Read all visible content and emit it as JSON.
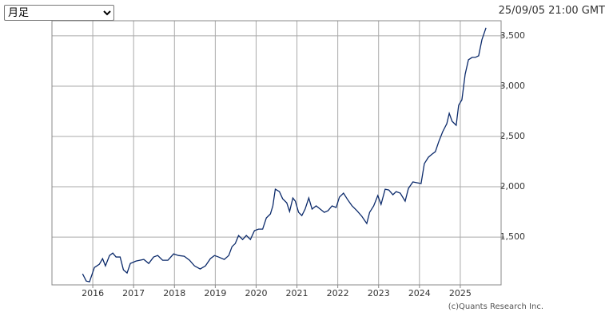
{
  "period_select": {
    "selected": "月足"
  },
  "timestamp": "25/09/05 21:00 GMT",
  "copyright": "(c)Quants Research Inc.",
  "chart_data": {
    "type": "line",
    "grid": true,
    "color": "#0b2a6b",
    "xlim": [
      2015,
      2026
    ],
    "xticks": [
      2016,
      2017,
      2018,
      2019,
      2020,
      2021,
      2022,
      2023,
      2024,
      2025
    ],
    "ylim": [
      1025,
      3650
    ],
    "yticks": [
      {
        "value": 1500,
        "label": "1,500"
      },
      {
        "value": 2000,
        "label": "2,000"
      },
      {
        "value": 2500,
        "label": "2,500"
      },
      {
        "value": 3000,
        "label": "3,000"
      },
      {
        "value": 3500,
        "label": "3,500"
      }
    ],
    "x": [
      2015.75,
      2015.84,
      2015.92,
      2016.04,
      2016.16,
      2016.24,
      2016.31,
      2016.41,
      2016.49,
      2016.57,
      2016.67,
      2016.75,
      2016.84,
      2016.92,
      2017.06,
      2017.25,
      2017.37,
      2017.49,
      2017.59,
      2017.71,
      2017.84,
      2017.98,
      2018.1,
      2018.24,
      2018.37,
      2018.49,
      2018.63,
      2018.76,
      2018.88,
      2018.98,
      2019.08,
      2019.22,
      2019.33,
      2019.41,
      2019.49,
      2019.57,
      2019.67,
      2019.76,
      2019.86,
      2019.96,
      2020.06,
      2020.16,
      2020.25,
      2020.35,
      2020.41,
      2020.47,
      2020.57,
      2020.65,
      2020.75,
      2020.82,
      2020.9,
      2020.96,
      2021.04,
      2021.12,
      2021.2,
      2021.29,
      2021.37,
      2021.47,
      2021.57,
      2021.67,
      2021.76,
      2021.86,
      2021.96,
      2022.04,
      2022.14,
      2022.24,
      2022.35,
      2022.47,
      2022.59,
      2022.71,
      2022.78,
      2022.88,
      2022.98,
      2023.06,
      2023.16,
      2023.25,
      2023.35,
      2023.43,
      2023.53,
      2023.65,
      2023.73,
      2023.84,
      2023.94,
      2024.04,
      2024.12,
      2024.22,
      2024.31,
      2024.39,
      2024.47,
      2024.57,
      2024.67,
      2024.73,
      2024.8,
      2024.9,
      2024.96,
      2025.04,
      2025.12,
      2025.2,
      2025.29,
      2025.37,
      2025.45,
      2025.53,
      2025.63
    ],
    "values": [
      1135,
      1063,
      1056,
      1198,
      1230,
      1286,
      1214,
      1317,
      1341,
      1302,
      1302,
      1175,
      1143,
      1238,
      1262,
      1278,
      1238,
      1302,
      1317,
      1270,
      1270,
      1333,
      1317,
      1310,
      1270,
      1214,
      1183,
      1214,
      1286,
      1317,
      1302,
      1278,
      1317,
      1405,
      1436,
      1516,
      1476,
      1516,
      1476,
      1564,
      1579,
      1579,
      1690,
      1730,
      1810,
      1976,
      1952,
      1881,
      1841,
      1754,
      1889,
      1857,
      1746,
      1714,
      1778,
      1889,
      1778,
      1810,
      1778,
      1746,
      1762,
      1810,
      1794,
      1897,
      1937,
      1873,
      1810,
      1762,
      1706,
      1635,
      1746,
      1810,
      1913,
      1825,
      1976,
      1968,
      1921,
      1952,
      1937,
      1857,
      1984,
      2048,
      2040,
      2032,
      2230,
      2294,
      2325,
      2349,
      2445,
      2548,
      2627,
      2730,
      2651,
      2611,
      2810,
      2865,
      3119,
      3262,
      3286,
      3286,
      3302,
      3461,
      3580
    ]
  }
}
